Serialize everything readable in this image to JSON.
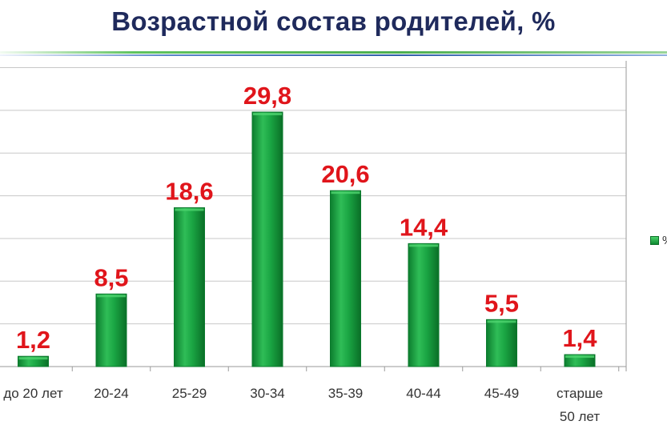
{
  "title": "Возрастной состав родителей, %",
  "chart_data": {
    "type": "bar",
    "title": "Возрастной состав родителей, %",
    "categories": [
      "до 20 лет",
      "20-24",
      "25-29",
      "30-34",
      "35-39",
      "40-44",
      "45-49",
      "старше 50 лет"
    ],
    "category_lines": [
      [
        "до 20 лет"
      ],
      [
        "20-24"
      ],
      [
        "25-29"
      ],
      [
        "30-34"
      ],
      [
        "35-39"
      ],
      [
        "40-44"
      ],
      [
        "45-49"
      ],
      [
        "старше",
        "50 лет"
      ]
    ],
    "values": [
      1.2,
      8.5,
      18.6,
      29.8,
      20.6,
      14.4,
      5.5,
      1.4
    ],
    "value_labels": [
      "1,2",
      "8,5",
      "18,6",
      "29,8",
      "20,6",
      "14,4",
      "5,5",
      "1,4"
    ],
    "ylim": [
      0,
      35
    ],
    "grid": true,
    "legend": {
      "position": "right",
      "entries": [
        "%"
      ]
    },
    "colors": {
      "bar_light": "#4fd46f",
      "bar_mid": "#1aa543",
      "bar_dark": "#0a7a2c",
      "label": "#e0151b",
      "grid": "#c8c8c8",
      "axis_text": "#333333"
    }
  }
}
